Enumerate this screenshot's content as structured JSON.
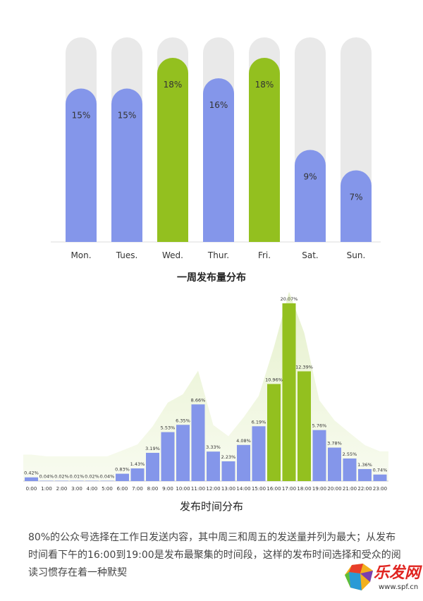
{
  "chart_data": [
    {
      "type": "bar",
      "title": "一周发布量分布",
      "categories": [
        "Mon.",
        "Tues.",
        "Wed.",
        "Thur.",
        "Fri.",
        "Sat.",
        "Sun."
      ],
      "values": [
        15,
        15,
        18,
        16,
        18,
        9,
        7
      ],
      "value_labels": [
        "15%",
        "15%",
        "18%",
        "16%",
        "18%",
        "9%",
        "7%"
      ],
      "unit": "%",
      "ylim": [
        0,
        20
      ],
      "grid": false,
      "colors": {
        "default": "#8496ea",
        "highlight": "#93c01f",
        "track": "#e9e9e9"
      },
      "highlighted": [
        "Wed.",
        "Fri."
      ]
    },
    {
      "type": "bar",
      "title": "发布时间分布",
      "categories": [
        "0:00",
        "1:00",
        "2:00",
        "3:00",
        "4:00",
        "5:00",
        "6:00",
        "7:00",
        "8:00",
        "9:00",
        "10:00",
        "11:00",
        "12:00",
        "13:00",
        "14:00",
        "15:00",
        "16:00",
        "17:00",
        "18:00",
        "19:00",
        "20:00",
        "21:00",
        "22:00",
        "23:00"
      ],
      "values": [
        0.42,
        0.04,
        0.02,
        0.01,
        0.02,
        0.04,
        0.83,
        1.43,
        3.19,
        5.53,
        6.35,
        8.66,
        3.33,
        2.23,
        4.08,
        6.19,
        10.96,
        20.07,
        12.39,
        5.76,
        3.78,
        2.55,
        1.36,
        0.74
      ],
      "value_labels": [
        "0.42%",
        "0.04%",
        "0.02%",
        "0.01%",
        "0.02%",
        "0.04%",
        "0.83%",
        "1.43%",
        "3.19%",
        "5.53%",
        "6.35%",
        "8.66%",
        "3.33%",
        "2.23%",
        "4.08%",
        "6.19%",
        "10.96%",
        "20.07%",
        "12.39%",
        "5.76%",
        "3.78%",
        "2.55%",
        "1.36%",
        "0.74%"
      ],
      "unit": "%",
      "ylim": [
        0,
        20.07
      ],
      "grid": false,
      "background_area": "light green envelope behind bars",
      "colors": {
        "default": "#8496ea",
        "highlight": "#93c01f",
        "area": "#eef6dc"
      },
      "highlighted": [
        "16:00",
        "17:00",
        "18:00"
      ]
    }
  ],
  "summary": "80%的公众号选择在工作日发送内容，其中周三和周五的发送量并列为最大；从发布时间看下午的16:00到19:00是发布最聚集的时间段，这样的发布时间选择和受众的阅读习惯存在着一种默契",
  "watermark": {
    "text": "乐发网",
    "url": "www.spf.cn"
  }
}
